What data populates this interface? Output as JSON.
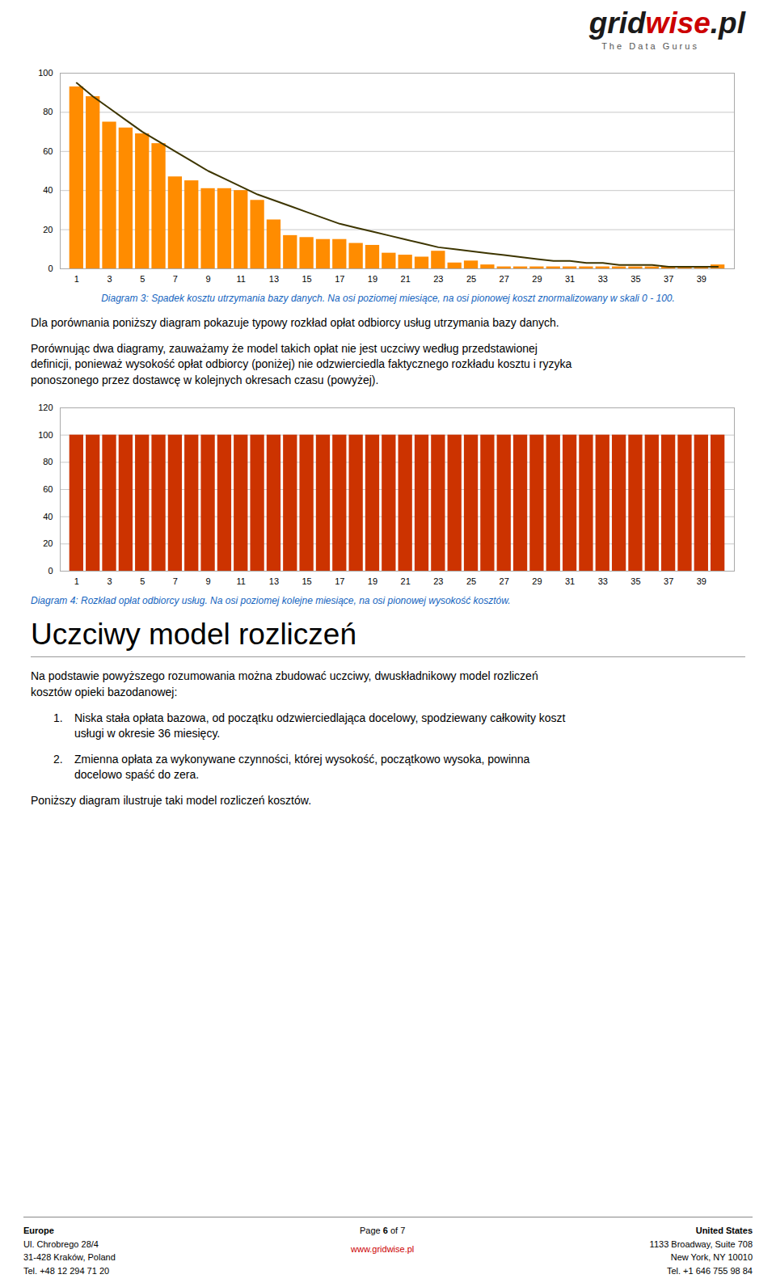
{
  "chart_data": [
    {
      "type": "bar",
      "caption": "Diagram 3: Spadek kosztu utrzymania bazy danych. Na osi poziomej miesiące, na osi pionowej koszt znormalizowany w skali 0 - 100.",
      "x": [
        1,
        2,
        3,
        4,
        5,
        6,
        7,
        8,
        9,
        10,
        11,
        12,
        13,
        14,
        15,
        16,
        17,
        18,
        19,
        20,
        21,
        22,
        23,
        24,
        25,
        26,
        27,
        28,
        29,
        30,
        31,
        32,
        33,
        34,
        35,
        36,
        37,
        38,
        39,
        40
      ],
      "series": [
        {
          "type": "bar",
          "color": "#FF8C00",
          "values": [
            93,
            88,
            75,
            72,
            69,
            64,
            47,
            45,
            41,
            41,
            40,
            35,
            25,
            17,
            16,
            15,
            15,
            13,
            12,
            8,
            7,
            6,
            9,
            3,
            4,
            2,
            1,
            1,
            1,
            1,
            1,
            1,
            1,
            1,
            1,
            1,
            1,
            1,
            1,
            2
          ]
        },
        {
          "type": "line",
          "color": "#3D3500",
          "values": [
            95,
            88,
            82,
            76,
            70,
            65,
            60,
            55,
            50,
            46,
            42,
            38,
            35,
            32,
            29,
            26,
            23,
            21,
            19,
            17,
            15,
            13,
            11,
            10,
            9,
            8,
            7,
            6,
            5,
            4,
            4,
            3,
            3,
            2,
            2,
            2,
            1,
            1,
            1,
            1
          ]
        }
      ],
      "xlim": [
        0,
        41
      ],
      "xticks": [
        1,
        3,
        5,
        7,
        9,
        11,
        13,
        15,
        17,
        19,
        21,
        23,
        25,
        27,
        29,
        31,
        33,
        35,
        37,
        39
      ],
      "ylim": [
        0,
        100
      ],
      "yticks": [
        0,
        20,
        40,
        60,
        80,
        100
      ],
      "grid": true
    },
    {
      "type": "bar",
      "caption": "Diagram 4: Rozkład opłat odbiorcy usług. Na osi poziomej kolejne miesiące, na osi pionowej wysokość kosztów.",
      "x": [
        1,
        2,
        3,
        4,
        5,
        6,
        7,
        8,
        9,
        10,
        11,
        12,
        13,
        14,
        15,
        16,
        17,
        18,
        19,
        20,
        21,
        22,
        23,
        24,
        25,
        26,
        27,
        28,
        29,
        30,
        31,
        32,
        33,
        34,
        35,
        36,
        37,
        38,
        39,
        40
      ],
      "values": [
        100,
        100,
        100,
        100,
        100,
        100,
        100,
        100,
        100,
        100,
        100,
        100,
        100,
        100,
        100,
        100,
        100,
        100,
        100,
        100,
        100,
        100,
        100,
        100,
        100,
        100,
        100,
        100,
        100,
        100,
        100,
        100,
        100,
        100,
        100,
        100,
        100,
        100,
        100,
        100
      ],
      "color": "#CC3300",
      "xlim": [
        0,
        41
      ],
      "xticks": [
        1,
        3,
        5,
        7,
        9,
        11,
        13,
        15,
        17,
        19,
        21,
        23,
        25,
        27,
        29,
        31,
        33,
        35,
        37,
        39
      ],
      "ylim": [
        0,
        120
      ],
      "yticks": [
        0,
        20,
        40,
        60,
        80,
        100,
        120
      ],
      "grid": true
    }
  ],
  "annotations": [
    "grid",
    "wise",
    ".pl",
    "T h e   D a t a   G u r u s",
    "Dla porównania poniższy diagram pokazuje typowy rozkład opłat odbiorcy usług utrzymania bazy danych.",
    "Porównując dwa diagramy, zauważamy że model takich opłat nie jest uczciwy według przedstawionej\ndefinicji, ponieważ wysokość opłat odbiorcy (poniżej) nie odzwierciedla faktycznego rozkładu kosztu i ryzyka\nponoszonego przez dostawcę w kolejnych okresach czasu (powyżej).",
    "Uczciwy model rozliczeń",
    "Na podstawie powyższego rozumowania można zbudować uczciwy, dwuskładnikowy model rozliczeń\nkosztów opieki bazodanowej:",
    "1.",
    "Niska stała opłata bazowa, od początku odzwierciedlająca docelowy, spodziewany całkowity koszt\nusługi w okresie 36 miesięcy.",
    "2.",
    "Zmienna opłata za wykonywane czynności, której wysokość, początkowo wysoka, powinna\ndocelowo spaść do zera.",
    "Poniższy diagram ilustruje taki model rozliczeń kosztów.",
    "Europe",
    "Ul. Chrobrego 28/4\n31-428 Kraków, Poland\nTel. +48 12 294 71 20",
    "Page ",
    "6",
    " of 7",
    "www.gridwise.pl",
    "United States",
    "1133 Broadway, Suite 708\nNew York, NY 10010\nTel. +1 646 755 98 84"
  ]
}
